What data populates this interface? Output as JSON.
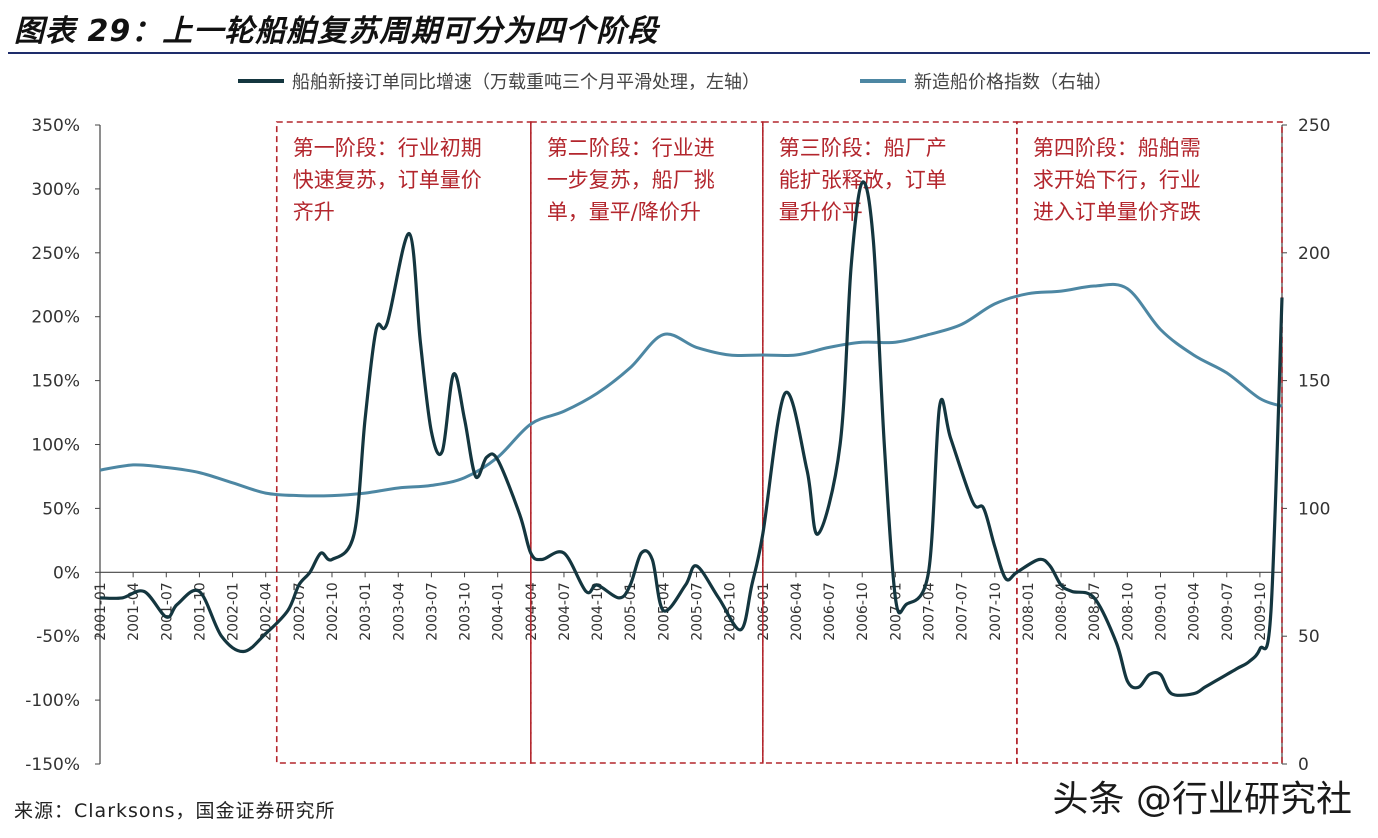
{
  "title": "图表 29：上一轮船舶复苏周期可分为四个阶段",
  "source": "来源：Clarksons，国金证券研究所",
  "watermark": "头条 @行业研究社",
  "colors": {
    "orders": "#14363f",
    "price": "#4d87a3",
    "phase_box": "#b3262d"
  },
  "chart_data": {
    "type": "line",
    "legend_placement": "top",
    "x_ticks": [
      "2001-01",
      "2001-04",
      "2001-07",
      "2001-10",
      "2002-01",
      "2002-04",
      "2002-07",
      "2002-10",
      "2003-01",
      "2003-04",
      "2003-07",
      "2003-10",
      "2004-01",
      "2004-04",
      "2004-07",
      "2004-10",
      "2005-01",
      "2005-04",
      "2005-07",
      "2005-10",
      "2006-01",
      "2006-04",
      "2006-07",
      "2006-10",
      "2007-01",
      "2007-04",
      "2007-07",
      "2007-10",
      "2008-01",
      "2008-04",
      "2008-07",
      "2008-10",
      "2009-01",
      "2009-04",
      "2009-07",
      "2009-10"
    ],
    "x_tick_labels": [
      "2001-01",
      "2001-04",
      "2001-07",
      "2001-10",
      "2002-01",
      "2002-04",
      "2002-07",
      "2002-10",
      "2003-01",
      "2003-04",
      "2003-07",
      "2003-10",
      "2004-01",
      "2004-04",
      "2004-07",
      "2004-10",
      "2005-01",
      "2005-04",
      "2005-07",
      "2005-10",
      "2006-01",
      "2006-04",
      "2006-07",
      "2006-10",
      "2007-01",
      "2007-04",
      "2007-07",
      "2007-10",
      "2008-01",
      "2008-04",
      "2008-07",
      "2008-10",
      "2009-01",
      "2009-04",
      "2009-07",
      "2009-10"
    ],
    "x_range": [
      "2001-01",
      "2009-12"
    ],
    "y_left": {
      "min": -150,
      "max": 350,
      "step": 50,
      "tick_labels": [
        "-150%",
        "-100%",
        "-50%",
        "0%",
        "50%",
        "100%",
        "150%",
        "200%",
        "250%",
        "300%",
        "350%"
      ]
    },
    "y_right": {
      "min": 0,
      "max": 250,
      "step": 50,
      "tick_labels": [
        "0",
        "50",
        "100",
        "150",
        "200",
        "250"
      ]
    },
    "series": [
      {
        "name": "船舶新接订单同比增速（万载重吨三个月平滑处理，左轴）",
        "axis": "left",
        "x": [
          "2001-01",
          "2001-03",
          "2001-05",
          "2001-07",
          "2001-08",
          "2001-10",
          "2001-12",
          "2002-02",
          "2002-04",
          "2002-06",
          "2002-07",
          "2002-08",
          "2002-09",
          "2002-10",
          "2002-12",
          "2003-01",
          "2003-02",
          "2003-03",
          "2003-05",
          "2003-06",
          "2003-07",
          "2003-08",
          "2003-09",
          "2003-10",
          "2003-11",
          "2003-12",
          "2004-01",
          "2004-03",
          "2004-04",
          "2004-05",
          "2004-07",
          "2004-09",
          "2004-10",
          "2004-12",
          "2005-01",
          "2005-02",
          "2005-03",
          "2005-04",
          "2005-06",
          "2005-07",
          "2005-09",
          "2005-11",
          "2005-12",
          "2006-01",
          "2006-03",
          "2006-05",
          "2006-06",
          "2006-08",
          "2006-09",
          "2006-10",
          "2006-11",
          "2006-12",
          "2007-01",
          "2007-02",
          "2007-04",
          "2007-05",
          "2007-06",
          "2007-08",
          "2007-09",
          "2007-10",
          "2007-11",
          "2007-12",
          "2008-02",
          "2008-03",
          "2008-04",
          "2008-05",
          "2008-07",
          "2008-09",
          "2008-10",
          "2008-11",
          "2008-12",
          "2009-01",
          "2009-02",
          "2009-04",
          "2009-05",
          "2009-06",
          "2009-07",
          "2009-08",
          "2009-09",
          "2009-10",
          "2009-11",
          "2009-12"
        ],
        "values": [
          -20,
          -20,
          -15,
          -35,
          -25,
          -15,
          -50,
          -62,
          -48,
          -30,
          -10,
          0,
          15,
          10,
          30,
          120,
          190,
          195,
          265,
          180,
          110,
          95,
          155,
          120,
          75,
          90,
          88,
          45,
          15,
          10,
          15,
          -15,
          -10,
          -20,
          -10,
          15,
          10,
          -30,
          -10,
          5,
          -20,
          -45,
          -10,
          30,
          140,
          80,
          30,
          100,
          240,
          305,
          260,
          100,
          -20,
          -25,
          0,
          130,
          105,
          55,
          50,
          20,
          -5,
          0,
          10,
          5,
          -10,
          -15,
          -20,
          -55,
          -85,
          -90,
          -80,
          -80,
          -95,
          -95,
          -90,
          -85,
          -80,
          -75,
          -70,
          -60,
          -30,
          215
        ]
      },
      {
        "name": "新造船价格指数（右轴）",
        "axis": "right",
        "x": [
          "2001-01",
          "2001-04",
          "2001-07",
          "2001-10",
          "2002-01",
          "2002-04",
          "2002-07",
          "2002-10",
          "2003-01",
          "2003-04",
          "2003-07",
          "2003-10",
          "2004-01",
          "2004-04",
          "2004-07",
          "2004-10",
          "2005-01",
          "2005-04",
          "2005-07",
          "2005-10",
          "2006-01",
          "2006-04",
          "2006-07",
          "2006-10",
          "2007-01",
          "2007-04",
          "2007-07",
          "2007-10",
          "2008-01",
          "2008-04",
          "2008-07",
          "2008-10",
          "2009-01",
          "2009-04",
          "2009-07",
          "2009-10",
          "2009-12"
        ],
        "values": [
          115,
          117,
          116,
          114,
          110,
          106,
          105,
          105,
          106,
          108,
          109,
          112,
          120,
          133,
          138,
          145,
          155,
          168,
          163,
          160,
          160,
          160,
          163,
          165,
          165,
          168,
          172,
          180,
          184,
          185,
          187,
          186,
          170,
          160,
          153,
          143,
          140
        ]
      }
    ],
    "annotations": [
      {
        "label": "第一阶段：行业初期快速复苏，订单量价齐升",
        "lines": [
          "第一阶段：行业初期",
          "快速复苏，订单量价",
          "齐升"
        ],
        "x_start": "2002-05",
        "x_end": "2004-04"
      },
      {
        "label": "第二阶段：行业进一步复苏，船厂挑单，量平/降价升",
        "lines": [
          "第二阶段：行业进",
          "一步复苏，船厂挑",
          "单，量平/降价升"
        ],
        "x_start": "2004-04",
        "x_end": "2006-01"
      },
      {
        "label": "第三阶段：船厂产能扩张释放，订单量升价平",
        "lines": [
          "第三阶段：船厂产",
          "能扩张释放，订单",
          "量升价平"
        ],
        "x_start": "2006-01",
        "x_end": "2007-12"
      },
      {
        "label": "第四阶段：船舶需求开始下行，行业进入订单量价齐跌",
        "lines": [
          "第四阶段：船舶需",
          "求开始下行，行业",
          "进入订单量价齐跌"
        ],
        "x_start": "2007-12",
        "x_end": "2009-12"
      }
    ]
  }
}
